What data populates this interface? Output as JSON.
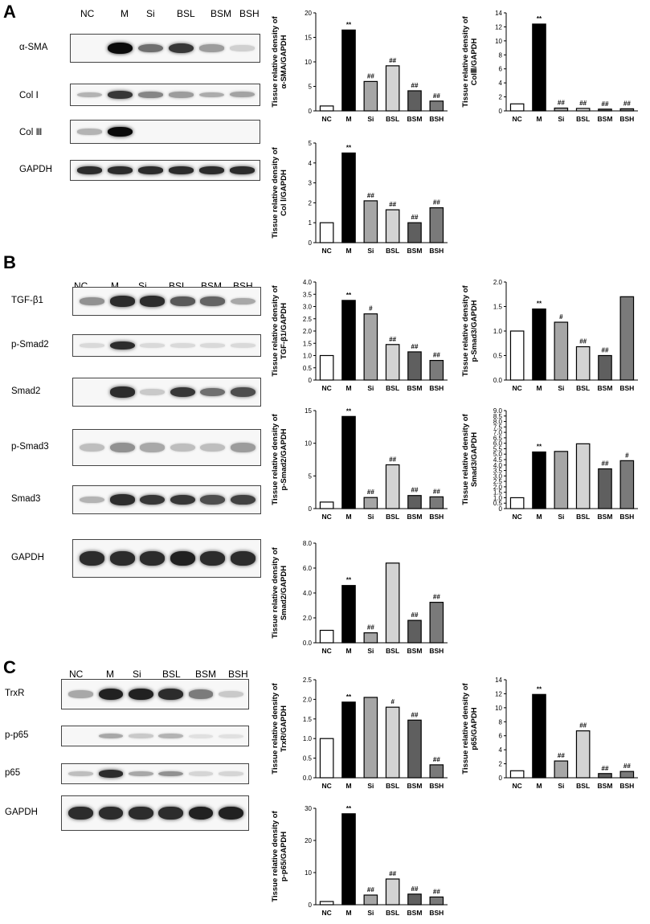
{
  "panels": [
    {
      "label": "A",
      "lanes": [
        "NC",
        "M",
        "Si",
        "BSL",
        "BSM",
        "BSH"
      ],
      "blots": [
        {
          "name": "α-SMA",
          "intensity": [
            0,
            1.0,
            0.55,
            0.8,
            0.35,
            0.12
          ]
        },
        {
          "name": "Col Ⅰ",
          "intensity": [
            0.25,
            0.8,
            0.45,
            0.35,
            0.28,
            0.32
          ]
        },
        {
          "name": "Col Ⅲ",
          "intensity": [
            0.25,
            1.0,
            0,
            0,
            0,
            0
          ]
        },
        {
          "name": "GAPDH",
          "intensity": [
            0.85,
            0.85,
            0.85,
            0.85,
            0.85,
            0.85
          ]
        }
      ]
    },
    {
      "label": "B",
      "lanes": [
        "NC",
        "M",
        "Si",
        "BSL",
        "BSM",
        "BSH"
      ],
      "blots": [
        {
          "name": "TGF-β1",
          "intensity": [
            0.4,
            0.85,
            0.85,
            0.65,
            0.6,
            0.3
          ]
        },
        {
          "name": "p-Smad2",
          "intensity": [
            0.08,
            0.85,
            0.08,
            0.08,
            0.08,
            0.08
          ]
        },
        {
          "name": "Smad2",
          "intensity": [
            0,
            0.85,
            0.15,
            0.8,
            0.55,
            0.7
          ]
        },
        {
          "name": "p-Smad3",
          "intensity": [
            0.2,
            0.4,
            0.3,
            0.2,
            0.2,
            0.35
          ]
        },
        {
          "name": "Smad3",
          "intensity": [
            0.25,
            0.85,
            0.8,
            0.8,
            0.7,
            0.75
          ]
        },
        {
          "name": "GAPDH",
          "intensity": [
            0.85,
            0.85,
            0.85,
            0.9,
            0.85,
            0.85
          ]
        }
      ]
    },
    {
      "label": "C",
      "lanes": [
        "NC",
        "M",
        "Si",
        "BSL",
        "BSM",
        "BSH"
      ],
      "blots": [
        {
          "name": "TrxR",
          "intensity": [
            0.3,
            0.9,
            0.9,
            0.85,
            0.5,
            0.15
          ]
        },
        {
          "name": "p-p65",
          "intensity": [
            0,
            0.3,
            0.15,
            0.25,
            0.05,
            0.05
          ]
        },
        {
          "name": "p65",
          "intensity": [
            0.2,
            0.85,
            0.3,
            0.4,
            0.1,
            0.1
          ]
        },
        {
          "name": "GAPDH",
          "intensity": [
            0.85,
            0.85,
            0.85,
            0.85,
            0.9,
            0.9
          ]
        }
      ]
    }
  ],
  "chart_data": [
    {
      "type": "bar",
      "panel": "A",
      "categories": [
        "NC",
        "M",
        "Si",
        "BSL",
        "BSM",
        "BSH"
      ],
      "values": [
        1.0,
        16.5,
        6.0,
        9.2,
        4.1,
        2.0
      ],
      "annotations": [
        "",
        "**",
        "##",
        "##",
        "##",
        "##"
      ],
      "ylabel": [
        "Tissue relative density of",
        "α-SMA/GAPDH"
      ],
      "ylim": [
        0,
        20
      ],
      "yticks": [
        0,
        5,
        10,
        15,
        20
      ]
    },
    {
      "type": "bar",
      "panel": "A",
      "categories": [
        "NC",
        "M",
        "Si",
        "BSL",
        "BSM",
        "BSH"
      ],
      "values": [
        1.0,
        12.4,
        0.4,
        0.35,
        0.25,
        0.3
      ],
      "annotations": [
        "",
        "**",
        "##",
        "##",
        "##",
        "##"
      ],
      "ylabel": [
        "Tissue relative density of",
        "ColⅢ/GAPDH"
      ],
      "ylim": [
        0,
        14
      ],
      "yticks": [
        0,
        2,
        4,
        6,
        8,
        10,
        12,
        14
      ]
    },
    {
      "type": "bar",
      "panel": "A",
      "categories": [
        "NC",
        "M",
        "Si",
        "BSL",
        "BSM",
        "BSH"
      ],
      "values": [
        1.0,
        4.5,
        2.1,
        1.65,
        1.0,
        1.75
      ],
      "annotations": [
        "",
        "**",
        "##",
        "##",
        "##",
        "##"
      ],
      "ylabel": [
        "Tissue relative density of",
        "Col Ⅰ/GAPDH"
      ],
      "ylim": [
        0,
        5
      ],
      "yticks": [
        0,
        1,
        2,
        3,
        4,
        5
      ]
    },
    {
      "type": "bar",
      "panel": "B",
      "categories": [
        "NC",
        "M",
        "Si",
        "BSL",
        "BSM",
        "BSH"
      ],
      "values": [
        1.0,
        3.25,
        2.7,
        1.45,
        1.15,
        0.8
      ],
      "annotations": [
        "",
        "**",
        "#",
        "##",
        "##",
        "##"
      ],
      "ylabel": [
        "Tissue relative density of",
        "TGF-β1/GAPDH"
      ],
      "ylim": [
        0,
        4.0
      ],
      "yticks": [
        0,
        0.5,
        1.0,
        1.5,
        2.0,
        2.5,
        3.0,
        3.5,
        4.0
      ],
      "ytick_labels": [
        "0",
        "0.5",
        "1.0",
        "1.5",
        "2.0",
        "2.5",
        "3.0",
        "3.5",
        "4.0"
      ]
    },
    {
      "type": "bar",
      "panel": "B",
      "categories": [
        "NC",
        "M",
        "Si",
        "BSL",
        "BSM",
        "BSH"
      ],
      "values": [
        1.0,
        1.45,
        1.18,
        0.68,
        0.5,
        1.7
      ],
      "annotations": [
        "",
        "**",
        "#",
        "##",
        "##",
        ""
      ],
      "ylabel": [
        "Tissue relative density of",
        "p-Smad3/GAPDH"
      ],
      "ylim": [
        0,
        2.0
      ],
      "yticks": [
        0,
        0.5,
        1.0,
        1.5,
        2.0
      ],
      "ytick_labels": [
        "0.0",
        "0.5",
        "1.0",
        "1.5",
        "2.0"
      ]
    },
    {
      "type": "bar",
      "panel": "B",
      "categories": [
        "NC",
        "M",
        "Si",
        "BSL",
        "BSM",
        "BSH"
      ],
      "values": [
        1.0,
        14.1,
        1.7,
        6.7,
        2.0,
        1.8
      ],
      "annotations": [
        "",
        "**",
        "##",
        "##",
        "##",
        "##"
      ],
      "ylabel": [
        "Tissue relative density of",
        "p-Smad2/GAPDH"
      ],
      "ylim": [
        0,
        15
      ],
      "yticks": [
        0,
        5,
        10,
        15
      ]
    },
    {
      "type": "bar",
      "panel": "B",
      "categories": [
        "NC",
        "M",
        "Si",
        "BSL",
        "BSM",
        "BSH"
      ],
      "values": [
        1.0,
        5.2,
        5.25,
        5.95,
        3.65,
        4.4
      ],
      "annotations": [
        "",
        "**",
        "",
        "",
        "##",
        "#"
      ],
      "ylabel": [
        "Tissue relative density of",
        "Smad3/GAPDH"
      ],
      "ylim": [
        0,
        9.0
      ],
      "yticks": [
        0,
        0.5,
        1.0,
        1.5,
        2.0,
        2.5,
        3.0,
        3.5,
        4.0,
        4.5,
        5.0,
        5.5,
        6.0,
        6.5,
        7.0,
        7.5,
        8.0,
        8.5,
        9.0
      ],
      "ytick_labels": [
        "0",
        "0.5",
        "1.0",
        "1.5",
        "2.0",
        "2.5",
        "3.0",
        "3.5",
        "4.0",
        "4.5",
        "5.0",
        "5.5",
        "6.0",
        "6.5",
        "7.0",
        "7.5",
        "8.0",
        "8.5",
        "9.0"
      ]
    },
    {
      "type": "bar",
      "panel": "B",
      "categories": [
        "NC",
        "M",
        "Si",
        "BSL",
        "BSM",
        "BSH"
      ],
      "values": [
        1.0,
        4.6,
        0.8,
        6.4,
        1.8,
        3.25
      ],
      "annotations": [
        "",
        "**",
        "##",
        "",
        "##",
        "##"
      ],
      "ylabel": [
        "Tissue relative density of",
        "Smad2/GAPDH"
      ],
      "ylim": [
        0,
        8.0
      ],
      "yticks": [
        0,
        2,
        4,
        6,
        8
      ],
      "ytick_labels": [
        "0.0",
        "2.0",
        "4.0",
        "6.0",
        "8.0"
      ]
    },
    {
      "type": "bar",
      "panel": "C",
      "categories": [
        "NC",
        "M",
        "Si",
        "BSL",
        "BSM",
        "BSH"
      ],
      "values": [
        1.0,
        1.93,
        2.05,
        1.8,
        1.47,
        0.33
      ],
      "annotations": [
        "",
        "**",
        "",
        "#",
        "##",
        "##"
      ],
      "ylabel": [
        "Tissue relative density of",
        "TrxR/GAPDH"
      ],
      "ylim": [
        0,
        2.5
      ],
      "yticks": [
        0,
        0.5,
        1.0,
        1.5,
        2.0,
        2.5
      ],
      "ytick_labels": [
        "0.0",
        "0.5",
        "1.0",
        "1.5",
        "2.0",
        "2.5"
      ]
    },
    {
      "type": "bar",
      "panel": "C",
      "categories": [
        "NC",
        "M",
        "Si",
        "BSL",
        "BSM",
        "BSH"
      ],
      "values": [
        1.0,
        11.9,
        2.4,
        6.7,
        0.6,
        0.9
      ],
      "annotations": [
        "",
        "**",
        "##",
        "##",
        "##",
        "##"
      ],
      "ylabel": [
        "Tissue relative density of",
        "p65/GAPDH"
      ],
      "ylim": [
        0,
        14
      ],
      "yticks": [
        0,
        2,
        4,
        6,
        8,
        10,
        12,
        14
      ]
    },
    {
      "type": "bar",
      "panel": "C",
      "categories": [
        "NC",
        "M",
        "Si",
        "BSL",
        "BSM",
        "BSH"
      ],
      "values": [
        1.0,
        28.3,
        3.0,
        8.0,
        3.3,
        2.4
      ],
      "annotations": [
        "",
        "**",
        "##",
        "##",
        "##",
        "##"
      ],
      "ylabel": [
        "Tissue relative density of",
        "p-p65/GAPDH"
      ],
      "ylim": [
        0,
        30
      ],
      "yticks": [
        0,
        10,
        20,
        30
      ]
    }
  ],
  "bar_colors": [
    "#ffffff",
    "#000000",
    "#a6a6a6",
    "#d3d3d3",
    "#5f5f5f",
    "#7a7a7a"
  ]
}
